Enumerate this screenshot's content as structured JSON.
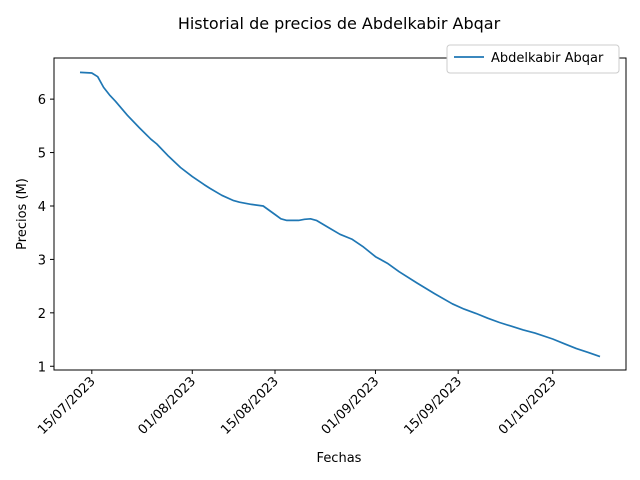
{
  "chart_data": {
    "type": "line",
    "title": "Historial de precios de Abdelkabir Abqar",
    "xlabel": "Fechas",
    "ylabel": "Precios (M)",
    "ylim": [
      0.93,
      6.77
    ],
    "x_ticks": [
      "15/07/2023",
      "01/08/2023",
      "15/08/2023",
      "01/09/2023",
      "15/09/2023",
      "01/10/2023"
    ],
    "y_ticks": [
      "1",
      "2",
      "3",
      "4",
      "5",
      "6"
    ],
    "legend": {
      "position": "top-right",
      "entries": [
        "Abdelkabir Abqar"
      ]
    },
    "grid": false,
    "colors": {
      "series": "#1f77b4",
      "axes": "#000000"
    },
    "series": [
      {
        "name": "Abdelkabir Abqar",
        "x": [
          "2023-07-13",
          "2023-07-15",
          "2023-07-16",
          "2023-07-17",
          "2023-07-18",
          "2023-07-19",
          "2023-07-21",
          "2023-07-23",
          "2023-07-25",
          "2023-07-26",
          "2023-07-28",
          "2023-07-30",
          "2023-08-01",
          "2023-08-03",
          "2023-08-04",
          "2023-08-06",
          "2023-08-08",
          "2023-08-09",
          "2023-08-11",
          "2023-08-13",
          "2023-08-15",
          "2023-08-16",
          "2023-08-17",
          "2023-08-19",
          "2023-08-20",
          "2023-08-21",
          "2023-08-22",
          "2023-08-24",
          "2023-08-26",
          "2023-08-28",
          "2023-08-30",
          "2023-09-01",
          "2023-09-03",
          "2023-09-05",
          "2023-09-08",
          "2023-09-11",
          "2023-09-14",
          "2023-09-16",
          "2023-09-18",
          "2023-09-20",
          "2023-09-22",
          "2023-09-24",
          "2023-09-26",
          "2023-09-28",
          "2023-10-01",
          "2023-10-03",
          "2023-10-05",
          "2023-10-07",
          "2023-10-09"
        ],
        "y": [
          6.5,
          6.49,
          6.42,
          6.22,
          6.08,
          5.96,
          5.7,
          5.47,
          5.25,
          5.16,
          4.93,
          4.72,
          4.55,
          4.4,
          4.33,
          4.2,
          4.1,
          4.07,
          4.03,
          4.0,
          3.84,
          3.76,
          3.73,
          3.73,
          3.75,
          3.76,
          3.73,
          3.6,
          3.47,
          3.38,
          3.23,
          3.05,
          2.93,
          2.77,
          2.56,
          2.36,
          2.17,
          2.07,
          1.99,
          1.9,
          1.82,
          1.75,
          1.68,
          1.62,
          1.51,
          1.42,
          1.33,
          1.26,
          1.18
        ]
      }
    ]
  }
}
